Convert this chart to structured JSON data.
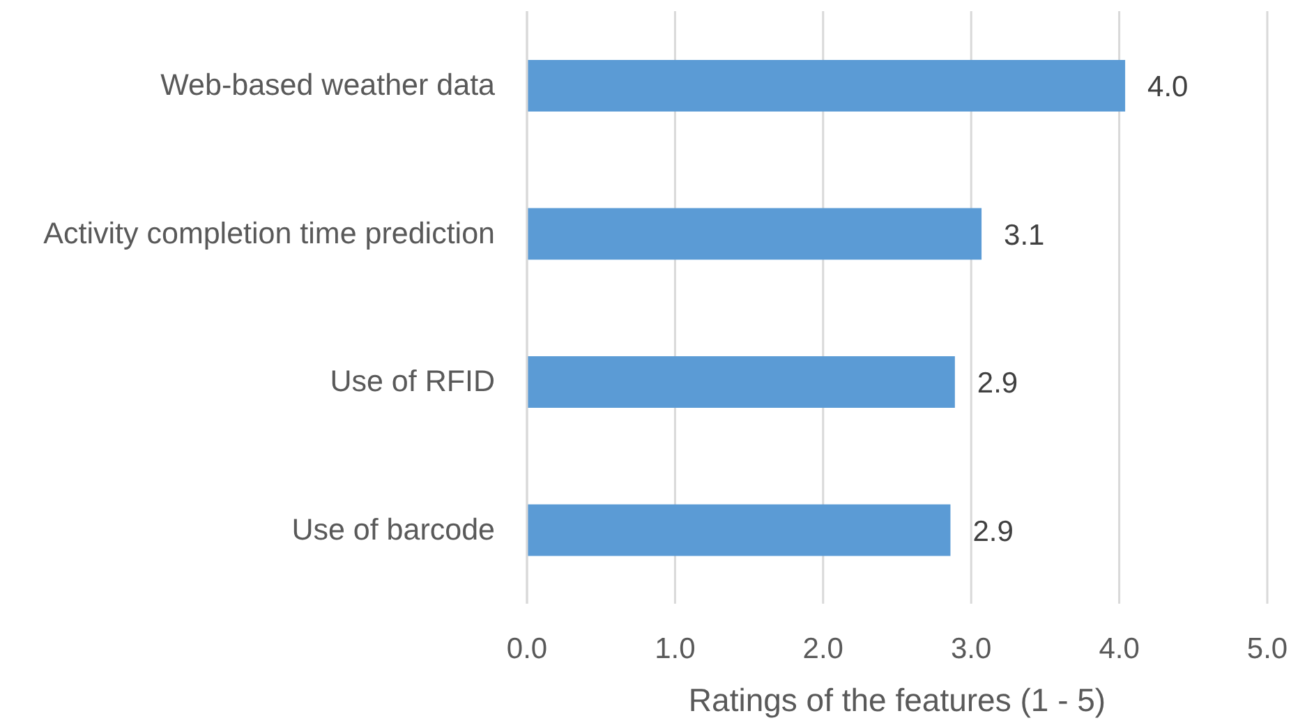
{
  "chart_data": {
    "type": "bar",
    "orientation": "horizontal",
    "xlabel": "Ratings of the features (1 - 5)",
    "categories": [
      "Web-based weather data",
      "Activity completion time prediction",
      "Use of RFID",
      "Use of barcode"
    ],
    "values": [
      4.04,
      3.07,
      2.89,
      2.86
    ],
    "value_labels": [
      "4.0",
      "3.1",
      "2.9",
      "2.9"
    ],
    "color": "#5b9bd5",
    "xlim": [
      0,
      5
    ],
    "xticks": [
      {
        "value": 0,
        "label": "0.0"
      },
      {
        "value": 1,
        "label": "1.0"
      },
      {
        "value": 2,
        "label": "2.0"
      },
      {
        "value": 3,
        "label": "3.0"
      },
      {
        "value": 4,
        "label": "4.0"
      },
      {
        "value": 5,
        "label": "5.0"
      }
    ],
    "grid": "x"
  }
}
